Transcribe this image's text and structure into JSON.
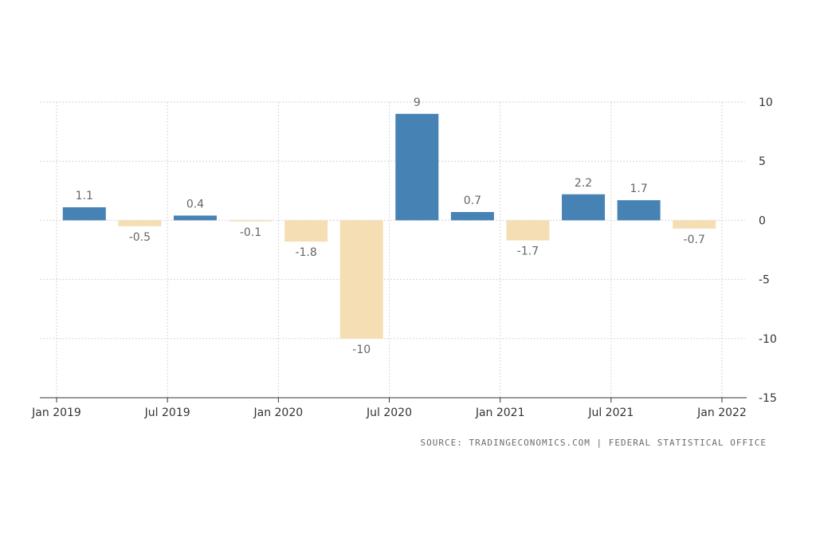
{
  "chart_data": {
    "type": "bar",
    "x_axis_labels": [
      "Jan 2019",
      "Jul 2019",
      "Jan 2020",
      "Jul 2020",
      "Jan 2021",
      "Jul 2021",
      "Jan 2022"
    ],
    "categories": [
      "Q1 2019",
      "Q2 2019",
      "Q3 2019",
      "Q4 2019",
      "Q1 2020",
      "Q2 2020",
      "Q3 2020",
      "Q4 2020",
      "Q1 2021",
      "Q2 2021",
      "Q3 2021",
      "Q4 2021"
    ],
    "values": [
      1.1,
      -0.5,
      0.4,
      -0.1,
      -1.8,
      -10,
      9,
      0.7,
      -1.7,
      2.2,
      1.7,
      -0.7
    ],
    "value_labels": [
      "1.1",
      "-0.5",
      "0.4",
      "-0.1",
      "-1.8",
      "-10",
      "9",
      "0.7",
      "-1.7",
      "2.2",
      "1.7",
      "-0.7"
    ],
    "yticks": [
      "10",
      "5",
      "0",
      "-5",
      "-10",
      "-15"
    ],
    "ylim": [
      -15,
      10
    ],
    "grid": true,
    "y_axis_side": "right",
    "colors": {
      "positive": "#4682b4",
      "negative": "#f5deb3"
    },
    "source": "SOURCE: TRADINGECONOMICS.COM | FEDERAL STATISTICAL OFFICE"
  }
}
